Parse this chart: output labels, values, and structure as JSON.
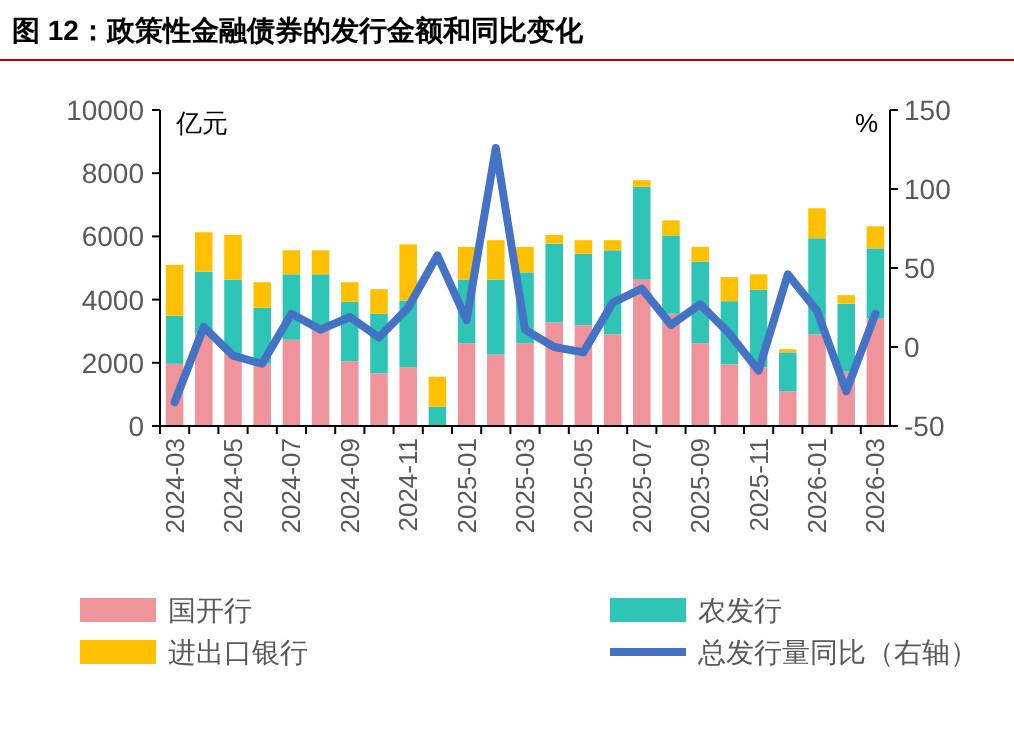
{
  "chart_data": {
    "type": "bar",
    "stacked": true,
    "title": "图 12：政策性金融债券的发行金额和同比变化",
    "ylabel": "亿元",
    "y2label": "%",
    "legend": "bottom",
    "categories": [
      "2024-03",
      null,
      "2024-05",
      null,
      "2024-07",
      null,
      "2024-09",
      null,
      "2024-11",
      null,
      "2025-01",
      null,
      "2025-03",
      null,
      "2025-05",
      null,
      "2025-07",
      null,
      "2025-09",
      null,
      "2025-11",
      null,
      "2026-01",
      null,
      "2026-03"
    ],
    "series": [
      {
        "name": "国开行",
        "color": "#f0949c",
        "values": [
          1970,
          2920,
          2280,
          1970,
          2730,
          3020,
          2050,
          1670,
          1860,
          0,
          2620,
          2260,
          2620,
          3280,
          3190,
          2900,
          4630,
          3550,
          2620,
          1950,
          1860,
          1100,
          2900,
          1730,
          3400
        ]
      },
      {
        "name": "农发行",
        "color": "#2ec4b6",
        "values": [
          1520,
          1960,
          2350,
          1770,
          2070,
          1780,
          1880,
          1880,
          2110,
          610,
          2010,
          2370,
          2240,
          2490,
          2260,
          2660,
          2940,
          2480,
          2580,
          2000,
          2450,
          1230,
          3040,
          2140,
          2220
        ]
      },
      {
        "name": "进出口银行",
        "color": "#ffc000",
        "values": [
          1610,
          1250,
          1420,
          810,
          760,
          760,
          620,
          780,
          1780,
          950,
          1040,
          1250,
          810,
          280,
          430,
          320,
          210,
          480,
          470,
          760,
          490,
          100,
          950,
          270,
          700
        ]
      },
      {
        "name": "总发行量同比（右轴）",
        "color": "#4472c4",
        "type": "line",
        "axis": "y2",
        "values": [
          -35,
          12.7,
          -5.5,
          -10.6,
          21,
          11,
          19,
          6,
          25,
          58,
          17,
          126,
          11,
          0,
          -3.4,
          28,
          37,
          14,
          27,
          8.5,
          -15,
          46,
          23,
          -28,
          21
        ]
      }
    ],
    "ylim": [
      0,
      10000
    ],
    "yticks": [
      0,
      2000,
      4000,
      6000,
      8000,
      10000
    ],
    "y2lim": [
      -50,
      150
    ],
    "y2ticks": [
      -50,
      0,
      50,
      100,
      150
    ]
  }
}
